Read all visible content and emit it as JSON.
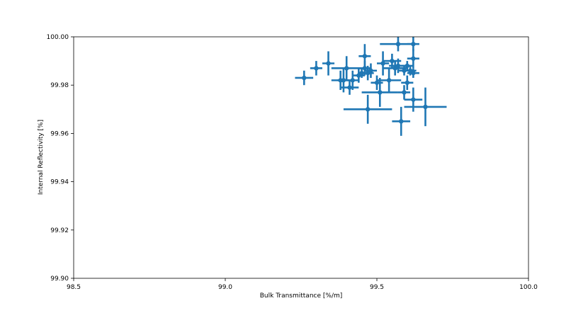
{
  "chart_data": {
    "type": "scatter",
    "title": "",
    "xlabel": "Bulk Transmittance [%/m]",
    "ylabel": "Internal Reflectivity [%]",
    "xlim": [
      98.5,
      100.0
    ],
    "ylim": [
      99.9,
      100.0
    ],
    "xticks": [
      "98.5",
      "99.0",
      "99.5",
      "100.0"
    ],
    "yticks": [
      "99.90",
      "99.92",
      "99.94",
      "99.96",
      "99.98",
      "100.00"
    ],
    "grid": false,
    "color": "#1f77b4",
    "series": [
      {
        "points": [
          {
            "x": 99.26,
            "y": 99.983,
            "xerr": 0.03,
            "yerr": 0.003
          },
          {
            "x": 99.3,
            "y": 99.987,
            "xerr": 0.02,
            "yerr": 0.003
          },
          {
            "x": 99.34,
            "y": 99.989,
            "xerr": 0.02,
            "yerr": 0.005
          },
          {
            "x": 99.38,
            "y": 99.982,
            "xerr": 0.03,
            "yerr": 0.004
          },
          {
            "x": 99.39,
            "y": 99.982,
            "xerr": 0.02,
            "yerr": 0.005
          },
          {
            "x": 99.4,
            "y": 99.987,
            "xerr": 0.05,
            "yerr": 0.005
          },
          {
            "x": 99.41,
            "y": 99.979,
            "xerr": 0.03,
            "yerr": 0.003
          },
          {
            "x": 99.42,
            "y": 99.982,
            "xerr": 0.02,
            "yerr": 0.004
          },
          {
            "x": 99.44,
            "y": 99.984,
            "xerr": 0.02,
            "yerr": 0.003
          },
          {
            "x": 99.45,
            "y": 99.985,
            "xerr": 0.01,
            "yerr": 0.002
          },
          {
            "x": 99.46,
            "y": 99.992,
            "xerr": 0.02,
            "yerr": 0.005
          },
          {
            "x": 99.46,
            "y": 99.987,
            "xerr": 0.02,
            "yerr": 0.003
          },
          {
            "x": 99.47,
            "y": 99.985,
            "xerr": 0.02,
            "yerr": 0.003
          },
          {
            "x": 99.48,
            "y": 99.986,
            "xerr": 0.02,
            "yerr": 0.003
          },
          {
            "x": 99.47,
            "y": 99.97,
            "xerr": 0.08,
            "yerr": 0.006
          },
          {
            "x": 99.5,
            "y": 99.981,
            "xerr": 0.02,
            "yerr": 0.003
          },
          {
            "x": 99.51,
            "y": 99.977,
            "xerr": 0.06,
            "yerr": 0.006
          },
          {
            "x": 99.52,
            "y": 99.989,
            "xerr": 0.02,
            "yerr": 0.005
          },
          {
            "x": 99.54,
            "y": 99.982,
            "xerr": 0.04,
            "yerr": 0.005
          },
          {
            "x": 99.55,
            "y": 99.99,
            "xerr": 0.03,
            "yerr": 0.003
          },
          {
            "x": 99.56,
            "y": 99.987,
            "xerr": 0.04,
            "yerr": 0.003
          },
          {
            "x": 99.57,
            "y": 99.997,
            "xerr": 0.06,
            "yerr": 0.003
          },
          {
            "x": 99.57,
            "y": 99.988,
            "xerr": 0.03,
            "yerr": 0.003
          },
          {
            "x": 99.58,
            "y": 99.965,
            "xerr": 0.03,
            "yerr": 0.006
          },
          {
            "x": 99.59,
            "y": 99.977,
            "xerr": 0.02,
            "yerr": 0.003
          },
          {
            "x": 99.59,
            "y": 99.986,
            "xerr": 0.02,
            "yerr": 0.002
          },
          {
            "x": 99.6,
            "y": 99.988,
            "xerr": 0.02,
            "yerr": 0.002
          },
          {
            "x": 99.6,
            "y": 99.981,
            "xerr": 0.02,
            "yerr": 0.003
          },
          {
            "x": 99.61,
            "y": 99.986,
            "xerr": 0.02,
            "yerr": 0.002
          },
          {
            "x": 99.62,
            "y": 99.991,
            "xerr": 0.02,
            "yerr": 0.004
          },
          {
            "x": 99.62,
            "y": 99.985,
            "xerr": 0.02,
            "yerr": 0.002
          },
          {
            "x": 99.62,
            "y": 99.997,
            "xerr": 0.02,
            "yerr": 0.003
          },
          {
            "x": 99.62,
            "y": 99.974,
            "xerr": 0.03,
            "yerr": 0.005
          },
          {
            "x": 99.66,
            "y": 99.971,
            "xerr": 0.07,
            "yerr": 0.008
          }
        ]
      }
    ]
  }
}
